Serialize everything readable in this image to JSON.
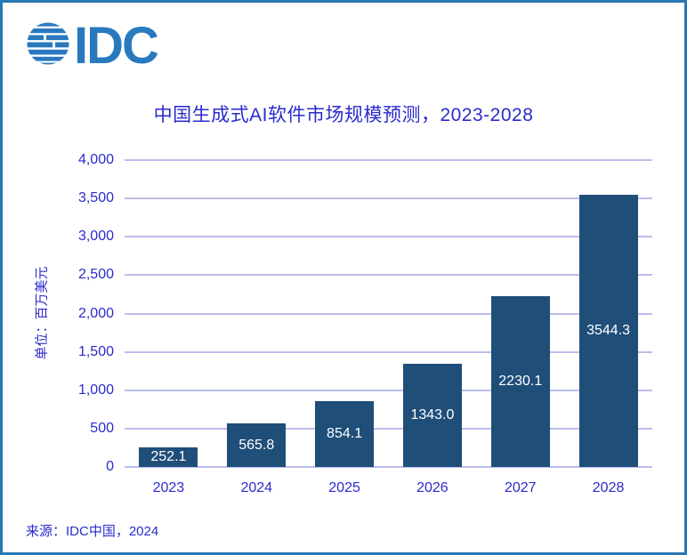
{
  "logo": {
    "text": "IDC"
  },
  "title": "中国生成式AI软件市场规模预测，2023-2028",
  "source": "来源：IDC中国，2024",
  "colors": {
    "accent_text": "#2B2BCC",
    "logo_blue": "#2979BE",
    "bar": "#1F4E79",
    "bar_label": "#FFFFFF",
    "gridline": "#BCBEEE",
    "frame_border": "#2778B5"
  },
  "chart_data": {
    "type": "bar",
    "title": "中国生成式AI软件市场规模预测，2023-2028",
    "categories": [
      "2023",
      "2024",
      "2025",
      "2026",
      "2027",
      "2028"
    ],
    "values": [
      252.1,
      565.8,
      854.1,
      1343.0,
      2230.1,
      3544.3
    ],
    "value_labels": [
      "252.1",
      "565.8",
      "854.1",
      "1343.0",
      "2230.1",
      "3544.3"
    ],
    "xlabel": "",
    "ylabel": "单位：百万美元",
    "ylim": [
      0,
      4000
    ],
    "yticks": [
      {
        "value": 0,
        "label": "0"
      },
      {
        "value": 500,
        "label": "500"
      },
      {
        "value": 1000,
        "label": "1,000"
      },
      {
        "value": 1500,
        "label": "1,500"
      },
      {
        "value": 2000,
        "label": "2,000"
      },
      {
        "value": 2500,
        "label": "2,500"
      },
      {
        "value": 3000,
        "label": "3,000"
      },
      {
        "value": 3500,
        "label": "3,500"
      },
      {
        "value": 4000,
        "label": "4,000"
      }
    ],
    "grid": true,
    "legend": false,
    "data_label_position": "center"
  }
}
